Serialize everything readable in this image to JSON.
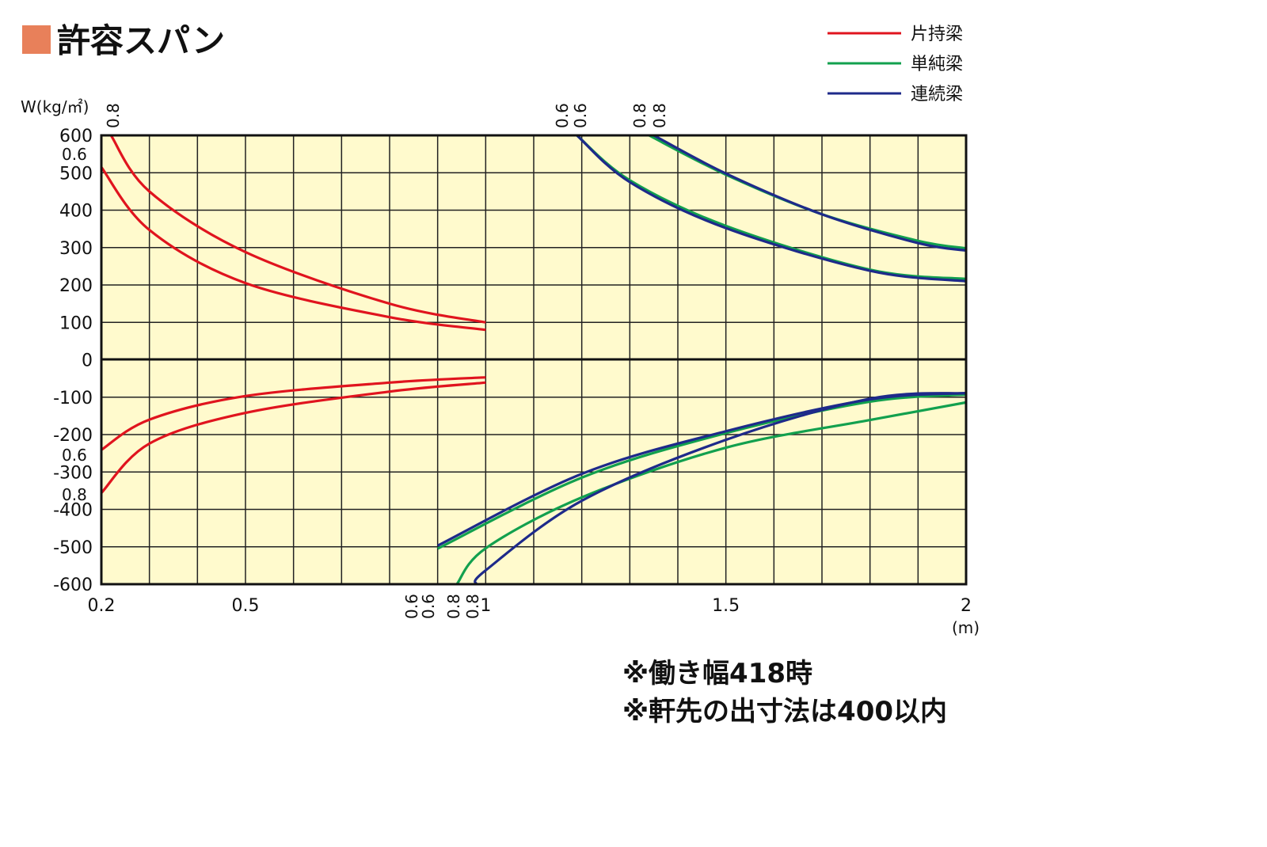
{
  "chart_data": {
    "type": "line",
    "title": "許容スパン",
    "title_marker_color": "#E8805A",
    "ylabel": "W(kg/㎡)",
    "xlabel": "(m)",
    "xlim": [
      0.2,
      2
    ],
    "ylim": [
      -600,
      600
    ],
    "x_ticks": [
      "0.2",
      "0.5",
      "1",
      "1.5",
      "2"
    ],
    "y_ticks": [
      "600",
      "500",
      "400",
      "300",
      "200",
      "100",
      "0",
      "-100",
      "-200",
      "-300",
      "-400",
      "-500",
      "-600"
    ],
    "grid": true,
    "x_grid_step": 0.1,
    "y_grid_step": 100,
    "background": "#FFFACD",
    "legend_position": "top-right",
    "legend": [
      {
        "name": "片持梁",
        "color": "#E0141E"
      },
      {
        "name": "単純梁",
        "color": "#12A04E"
      },
      {
        "name": "連続梁",
        "color": "#1E2A8A"
      }
    ],
    "series": [
      {
        "type": "片持梁",
        "label": "0.8",
        "points": [
          [
            0.22,
            600
          ],
          [
            0.3,
            450
          ],
          [
            0.5,
            288
          ],
          [
            0.8,
            150
          ],
          [
            1.0,
            100
          ]
        ]
      },
      {
        "type": "片持梁",
        "label": "0.6",
        "points": [
          [
            0.2,
            515
          ],
          [
            0.3,
            347
          ],
          [
            0.5,
            205
          ],
          [
            0.8,
            114
          ],
          [
            1.0,
            80
          ]
        ]
      },
      {
        "type": "片持梁",
        "label": "0.6",
        "points": [
          [
            0.2,
            -241
          ],
          [
            0.3,
            -160
          ],
          [
            0.5,
            -97
          ],
          [
            0.8,
            -61
          ],
          [
            1.0,
            -47
          ]
        ]
      },
      {
        "type": "片持梁",
        "label": "0.8",
        "points": [
          [
            0.2,
            -356
          ],
          [
            0.3,
            -224
          ],
          [
            0.5,
            -142
          ],
          [
            0.8,
            -85
          ],
          [
            1.0,
            -61
          ]
        ]
      },
      {
        "type": "単純梁",
        "label": "0.6",
        "points": [
          [
            1.19,
            600
          ],
          [
            1.3,
            480
          ],
          [
            1.5,
            358
          ],
          [
            1.8,
            241
          ],
          [
            2.0,
            216
          ]
        ]
      },
      {
        "type": "連続梁",
        "label": "0.6",
        "points": [
          [
            1.19,
            600
          ],
          [
            1.3,
            475
          ],
          [
            1.5,
            352
          ],
          [
            1.8,
            238
          ],
          [
            2.0,
            210
          ]
        ]
      },
      {
        "type": "単純梁",
        "label": "0.8",
        "points": [
          [
            1.34,
            600
          ],
          [
            1.5,
            495
          ],
          [
            1.7,
            389
          ],
          [
            1.9,
            318
          ],
          [
            2.0,
            298
          ]
        ]
      },
      {
        "type": "連続梁",
        "label": "0.8",
        "points": [
          [
            1.35,
            600
          ],
          [
            1.5,
            498
          ],
          [
            1.7,
            389
          ],
          [
            1.9,
            312
          ],
          [
            2.0,
            292
          ]
        ]
      },
      {
        "type": "単純梁",
        "label": "0.6",
        "points": [
          [
            0.9,
            -505
          ],
          [
            1.2,
            -315
          ],
          [
            1.5,
            -196
          ],
          [
            1.8,
            -112
          ],
          [
            2.0,
            -93
          ]
        ]
      },
      {
        "type": "連続梁",
        "label": "0.6",
        "points": [
          [
            0.9,
            -497
          ],
          [
            1.2,
            -305
          ],
          [
            1.5,
            -191
          ],
          [
            1.8,
            -106
          ],
          [
            2.0,
            -89
          ]
        ]
      },
      {
        "type": "単純梁",
        "label": "0.8",
        "points": [
          [
            0.94,
            -600
          ],
          [
            1.0,
            -504
          ],
          [
            1.2,
            -368
          ],
          [
            1.5,
            -235
          ],
          [
            1.8,
            -161
          ],
          [
            2.0,
            -114
          ]
        ]
      },
      {
        "type": "連続梁",
        "label": "0.8",
        "points": [
          [
            0.98,
            -600
          ],
          [
            1.0,
            -563
          ],
          [
            1.2,
            -377
          ],
          [
            1.5,
            -214
          ],
          [
            1.8,
            -104
          ],
          [
            2.0,
            -89
          ]
        ]
      }
    ],
    "thickness_labels_top": [
      "0.8",
      "0.6",
      "0.6",
      "0.8",
      "0.8"
    ],
    "thickness_labels_left": [
      "0.6",
      "0.6",
      "0.8"
    ],
    "thickness_labels_bottom": [
      "0.6",
      "0.6",
      "0.8",
      "0.8"
    ]
  },
  "notes": [
    "※働き幅418時",
    "※軒先の出寸法は400以内"
  ]
}
